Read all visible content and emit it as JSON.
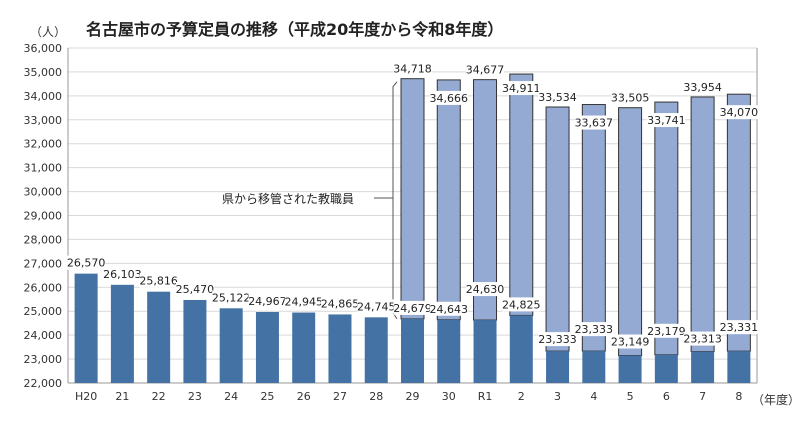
{
  "chart_data": {
    "type": "bar",
    "stacked": true,
    "title": "名古屋市の予算定員の推移（平成20年度から令和8年度）",
    "ylabel": "（人）",
    "xlabel": "（年度）",
    "ylim": [
      22000,
      36000
    ],
    "ytick_step": 1000,
    "grid": true,
    "categories": [
      "H20",
      "21",
      "22",
      "23",
      "24",
      "25",
      "26",
      "27",
      "28",
      "29",
      "30",
      "R1",
      "2",
      "3",
      "4",
      "5",
      "6",
      "7",
      "8"
    ],
    "series": [
      {
        "name": "base",
        "color": "#4472a4",
        "values": [
          26570,
          26103,
          25816,
          25470,
          25122,
          24967,
          24945,
          24865,
          24745,
          24679,
          24643,
          24630,
          24825,
          23333,
          23333,
          23149,
          23179,
          23313,
          23331
        ]
      },
      {
        "name": "total",
        "color": "#94aad3",
        "values": [
          null,
          null,
          null,
          null,
          null,
          null,
          null,
          null,
          null,
          34718,
          34666,
          34677,
          34911,
          33534,
          33637,
          33505,
          33741,
          33954,
          34070
        ]
      }
    ],
    "annotation": "県から移管された教職員"
  }
}
